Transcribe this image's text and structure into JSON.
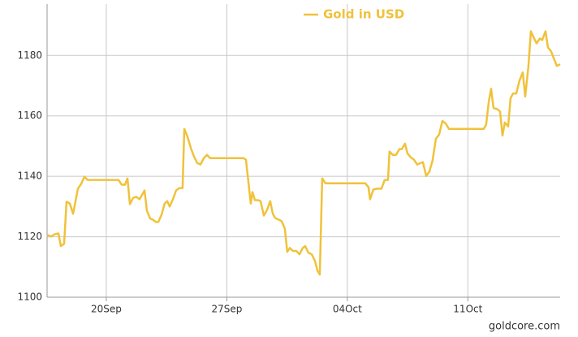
{
  "chart_data": {
    "type": "line",
    "legend": "top",
    "source": "goldcore.com",
    "grid": true,
    "ylim": [
      1100,
      1197
    ],
    "yticks": [
      1100,
      1120,
      1140,
      1160,
      1180
    ],
    "xlim": [
      16.56,
      46.36
    ],
    "xticks": [
      {
        "value": 20,
        "label": "20Sep"
      },
      {
        "value": 27,
        "label": "27Sep"
      },
      {
        "value": 34,
        "label": "04Oct"
      },
      {
        "value": 41,
        "label": "11Oct"
      }
    ],
    "x": [
      16.56,
      16.79,
      17.03,
      17.22,
      17.36,
      17.55,
      17.69,
      17.88,
      18.07,
      18.35,
      18.54,
      18.73,
      18.92,
      20.71,
      20.9,
      21.08,
      21.23,
      21.37,
      21.56,
      21.74,
      21.93,
      22.22,
      22.36,
      22.55,
      22.69,
      22.88,
      23.02,
      23.21,
      23.39,
      23.54,
      23.68,
      23.87,
      24.05,
      24.24,
      24.43,
      24.53,
      24.71,
      24.9,
      25.09,
      25.28,
      25.47,
      25.66,
      25.85,
      26.03,
      27.97,
      28.11,
      28.25,
      28.39,
      28.49,
      28.63,
      28.82,
      28.96,
      29.15,
      29.34,
      29.52,
      29.67,
      29.81,
      30.0,
      30.18,
      30.37,
      30.51,
      30.66,
      30.84,
      31.03,
      31.22,
      31.41,
      31.55,
      31.74,
      31.93,
      32.12,
      32.26,
      32.4,
      32.54,
      32.73,
      35.04,
      35.23,
      35.32,
      35.51,
      35.7,
      35.98,
      36.17,
      36.36,
      36.45,
      36.64,
      36.83,
      37.02,
      37.16,
      37.35,
      37.49,
      37.68,
      37.87,
      38.06,
      38.25,
      38.39,
      38.58,
      38.76,
      38.95,
      39.14,
      39.33,
      39.52,
      39.71,
      39.9,
      41.92,
      42.06,
      42.21,
      42.35,
      42.49,
      42.68,
      42.87,
      43.01,
      43.15,
      43.34,
      43.48,
      43.62,
      43.81,
      44.0,
      44.19,
      44.33,
      44.52,
      44.66,
      44.85,
      44.99,
      45.18,
      45.32,
      45.51,
      45.65,
      45.84,
      45.98,
      46.17,
      46.36
    ],
    "series": [
      {
        "name": "Gold in USD",
        "color": "#f0c23b",
        "values": [
          1120.6,
          1120.1,
          1120.9,
          1121.1,
          1116.9,
          1117.7,
          1131.6,
          1131.0,
          1127.6,
          1135.9,
          1137.5,
          1139.9,
          1138.8,
          1138.8,
          1137.2,
          1137.2,
          1139.3,
          1130.8,
          1132.9,
          1133.2,
          1132.4,
          1135.3,
          1128.6,
          1126.0,
          1125.7,
          1124.9,
          1124.9,
          1127.3,
          1131.0,
          1131.8,
          1130.0,
          1132.4,
          1135.3,
          1136.1,
          1136.1,
          1155.7,
          1153.2,
          1149.5,
          1146.6,
          1144.4,
          1143.9,
          1146.0,
          1147.1,
          1146.0,
          1146.0,
          1145.5,
          1138.3,
          1131.0,
          1134.8,
          1132.1,
          1132.1,
          1131.8,
          1127.0,
          1128.9,
          1131.8,
          1127.6,
          1126.2,
          1125.7,
          1125.2,
          1122.7,
          1115.0,
          1116.3,
          1115.3,
          1115.3,
          1114.2,
          1116.3,
          1116.9,
          1114.7,
          1114.2,
          1112.0,
          1108.8,
          1107.5,
          1139.3,
          1137.7,
          1137.7,
          1136.4,
          1132.4,
          1135.6,
          1135.9,
          1135.9,
          1138.8,
          1138.8,
          1148.2,
          1147.1,
          1147.1,
          1149.0,
          1149.0,
          1150.8,
          1147.6,
          1146.3,
          1145.5,
          1143.9,
          1144.4,
          1144.7,
          1140.1,
          1141.5,
          1145.2,
          1152.4,
          1153.8,
          1158.3,
          1157.5,
          1155.7,
          1155.7,
          1157.0,
          1164.5,
          1169.0,
          1162.6,
          1162.3,
          1161.5,
          1153.5,
          1157.8,
          1156.5,
          1165.8,
          1167.4,
          1167.4,
          1171.7,
          1174.4,
          1166.4,
          1176.5,
          1188.0,
          1185.6,
          1184.0,
          1185.6,
          1185.1,
          1188.0,
          1182.7,
          1181.3,
          1179.2,
          1176.5,
          1177.1
        ]
      }
    ]
  }
}
